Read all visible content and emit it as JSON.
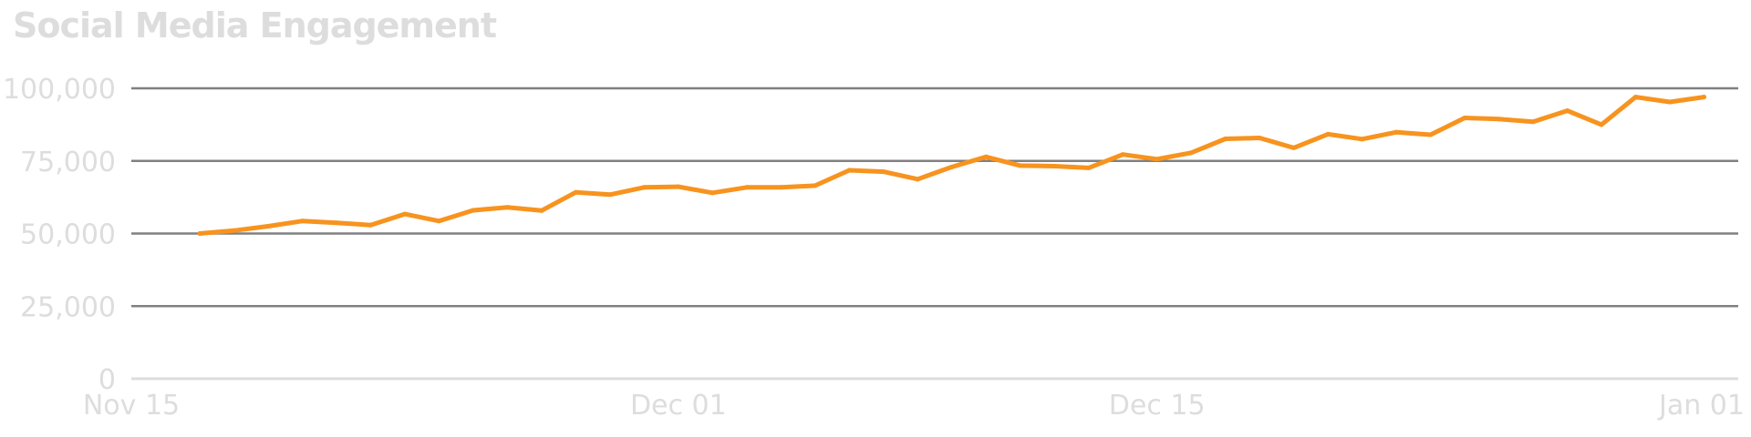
{
  "colors": {
    "line": "#f7931e",
    "grid": "#808080",
    "baseline": "#dddddd",
    "text": "#dddddd"
  },
  "chart_data": {
    "type": "line",
    "title": "Social Media Engagement",
    "xlabel": "",
    "ylabel": "",
    "x_type": "date",
    "xlim": [
      "2023-11-15",
      "2024-01-01"
    ],
    "ylim": [
      0,
      100000
    ],
    "yticks": [
      0,
      25000,
      50000,
      75000,
      100000
    ],
    "ytick_labels": [
      "0",
      "25,000",
      "50,000",
      "75,000",
      "100,000"
    ],
    "xticks": [
      "2023-11-15",
      "2023-12-01",
      "2023-12-15",
      "2024-01-01"
    ],
    "xtick_labels": [
      "Nov 15",
      "Dec 01",
      "Dec 15",
      "Jan 01"
    ],
    "grid": true,
    "legend": "none",
    "series": [
      {
        "x": [
          "2023-11-17",
          "2023-11-18",
          "2023-11-19",
          "2023-11-20",
          "2023-11-21",
          "2023-11-22",
          "2023-11-23",
          "2023-11-24",
          "2023-11-25",
          "2023-11-26",
          "2023-11-27",
          "2023-11-28",
          "2023-11-29",
          "2023-11-30",
          "2023-12-01",
          "2023-12-02",
          "2023-12-03",
          "2023-12-04",
          "2023-12-05",
          "2023-12-06",
          "2023-12-07",
          "2023-12-08",
          "2023-12-09",
          "2023-12-10",
          "2023-12-11",
          "2023-12-12",
          "2023-12-13",
          "2023-12-14",
          "2023-12-15",
          "2023-12-16",
          "2023-12-17",
          "2023-12-18",
          "2023-12-19",
          "2023-12-20",
          "2023-12-21",
          "2023-12-22",
          "2023-12-23",
          "2023-12-24",
          "2023-12-25",
          "2023-12-26",
          "2023-12-27",
          "2023-12-28",
          "2023-12-29",
          "2023-12-30",
          "2023-12-31"
        ],
        "values": [
          50000,
          51000,
          52500,
          54300,
          53700,
          52900,
          56700,
          54300,
          58000,
          59000,
          57900,
          64200,
          63400,
          65900,
          66100,
          64000,
          65900,
          65900,
          66500,
          71800,
          71300,
          68700,
          72900,
          76400,
          73400,
          73200,
          72600,
          77200,
          75600,
          77800,
          82600,
          82900,
          79500,
          84200,
          82500,
          84900,
          84000,
          89800,
          89400,
          88500,
          92300,
          87500,
          97000,
          95300,
          97000
        ]
      }
    ]
  }
}
